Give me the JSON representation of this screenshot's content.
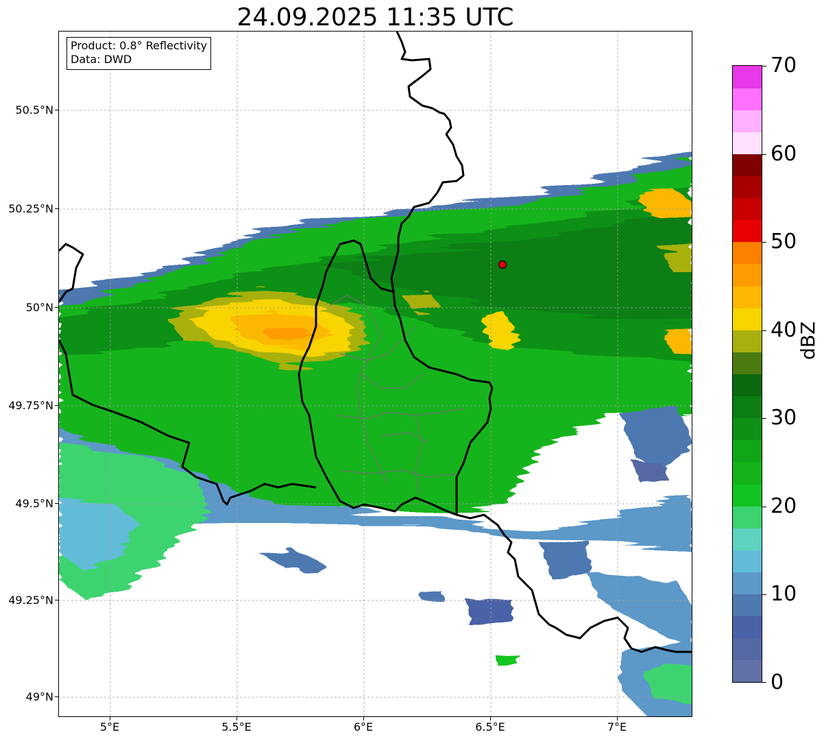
{
  "title": "24.09.2025 11:35 UTC",
  "info": {
    "product_line": "Product: 0.8° Reflectivity",
    "data_line": "Data: DWD"
  },
  "axes": {
    "y_ticks": [
      "50.5°N",
      "50.25°N",
      "50°N",
      "49.75°N",
      "49.5°N",
      "49.25°N",
      "49°N"
    ],
    "x_ticks": [
      "5°E",
      "5.5°E",
      "6°E",
      "6.5°E",
      "7°E"
    ],
    "lon_range": [
      4.8,
      7.3
    ],
    "lat_range": [
      48.95,
      50.7
    ]
  },
  "colorbar": {
    "unit": "dBZ",
    "labels": [
      "70",
      "60",
      "50",
      "40",
      "30",
      "20",
      "10",
      "0"
    ],
    "colors": [
      "#6272a6",
      "#5468a4",
      "#4a62a8",
      "#4e78b0",
      "#5c98c8",
      "#62bcd8",
      "#5cd4c0",
      "#3cd470",
      "#12c422",
      "#12b41a",
      "#10a618",
      "#0e9014",
      "#0c7e12",
      "#0a6a10",
      "#4a7a10",
      "#a8b010",
      "#f8d400",
      "#fcb800",
      "#fc9c00",
      "#fc8000",
      "#e80000",
      "#c80000",
      "#a80000",
      "#800000",
      "#ffe0ff",
      "#ffb0ff",
      "#ff70ff",
      "#e838e8"
    ]
  },
  "station_marker_color": "#e00000",
  "grid": true
}
